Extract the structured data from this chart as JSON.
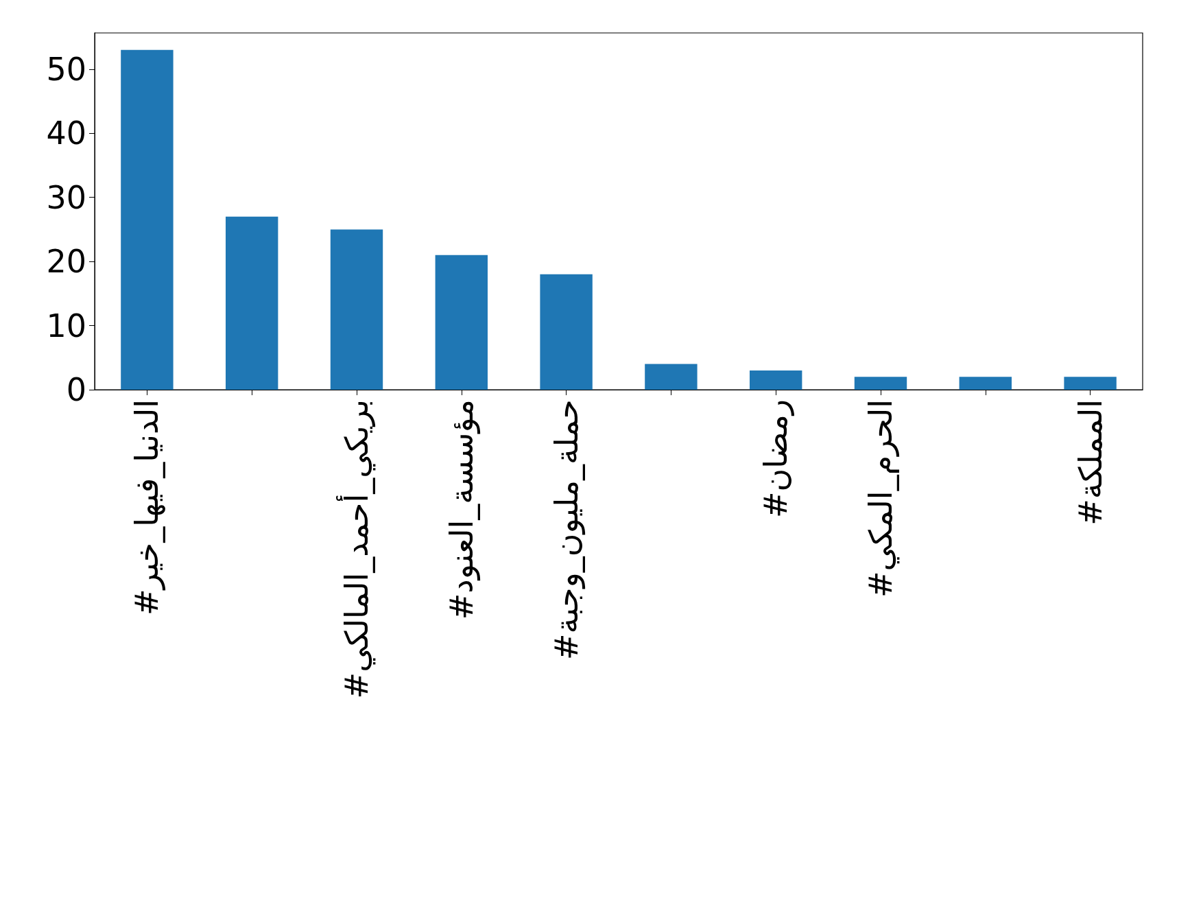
{
  "chart_data": {
    "type": "bar",
    "categories": [
      "#الدنيا_فيها_خير",
      null,
      "#بريكي_أحمد_المالكي",
      "#مؤسسة_العنود",
      "#حملة_مليون_وجبة",
      null,
      "#رمضان",
      "#الحرم_المكي",
      null,
      "#المملكة"
    ],
    "values": [
      53,
      27,
      25,
      21,
      18,
      4,
      3,
      2,
      2,
      2
    ],
    "color": "#1f77b4",
    "ylim": [
      0,
      55.65
    ],
    "yticks": [
      0,
      10,
      20,
      30,
      40,
      50
    ],
    "grid": false
  }
}
